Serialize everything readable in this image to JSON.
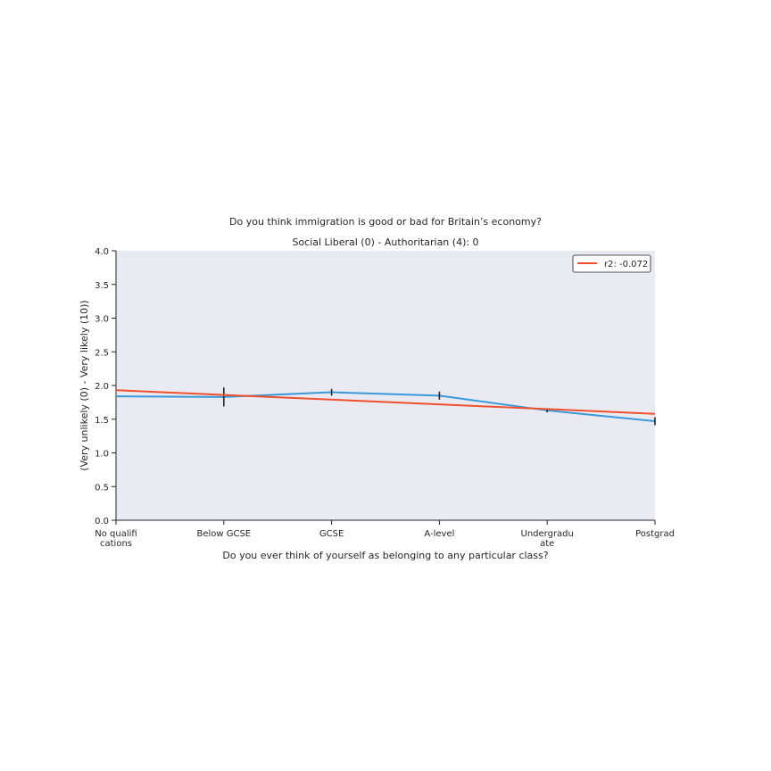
{
  "chart_data": {
    "type": "line",
    "title": "Do you think immigration is good or bad for Britain’s economy?",
    "subtitle": "Social Liberal (0) - Authoritarian (4): 0",
    "xlabel": "Do you ever think of yourself as belonging to any particular class?",
    "ylabel": "(Very unlikely (0) - Very likely (10))",
    "ylim": [
      0,
      4
    ],
    "yticks": [
      "0.0",
      "0.5",
      "1.0",
      "1.5",
      "2.0",
      "2.5",
      "3.0",
      "3.5",
      "4.0"
    ],
    "categories": [
      [
        "No qualifi",
        "cations"
      ],
      [
        "Below GCSE"
      ],
      [
        "GCSE"
      ],
      [
        "A-level"
      ],
      [
        "Undergradu",
        "ate"
      ],
      [
        "Postgrad"
      ]
    ],
    "series": [
      {
        "values": [
          1.84,
          1.83,
          1.9,
          1.85,
          1.63,
          1.47
        ],
        "error": [
          0.0,
          0.14,
          0.05,
          0.06,
          0.03,
          0.06
        ],
        "color": "#3a9ad9"
      }
    ],
    "trendline": {
      "name": "r2: -0.072",
      "start": 1.93,
      "end": 1.58,
      "color": "#f0502b"
    },
    "background": "#eaeaf2",
    "grid": false,
    "legend": "top-right"
  }
}
